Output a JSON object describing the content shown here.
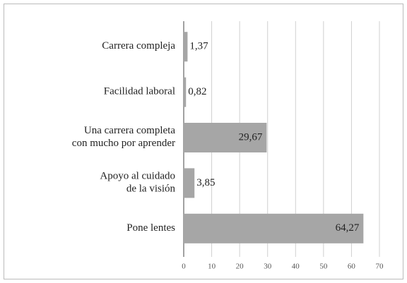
{
  "chart_data": {
    "type": "bar",
    "orientation": "horizontal",
    "categories": [
      [
        "Carrera compleja"
      ],
      [
        "Facilidad laboral"
      ],
      [
        "Una carrera completa",
        "con mucho por aprender"
      ],
      [
        "Apoyo al cuidado",
        "de la visión"
      ],
      [
        "Pone lentes"
      ]
    ],
    "values": [
      1.37,
      0.82,
      29.67,
      3.85,
      64.27
    ],
    "value_labels": [
      "1,37",
      "0,82",
      "29,67",
      "3,85",
      "64,27"
    ],
    "color": "#a6a6a6",
    "xlim": [
      0,
      70
    ],
    "xticks": [
      0,
      10,
      20,
      30,
      40,
      50,
      60,
      70
    ],
    "grid": true
  }
}
